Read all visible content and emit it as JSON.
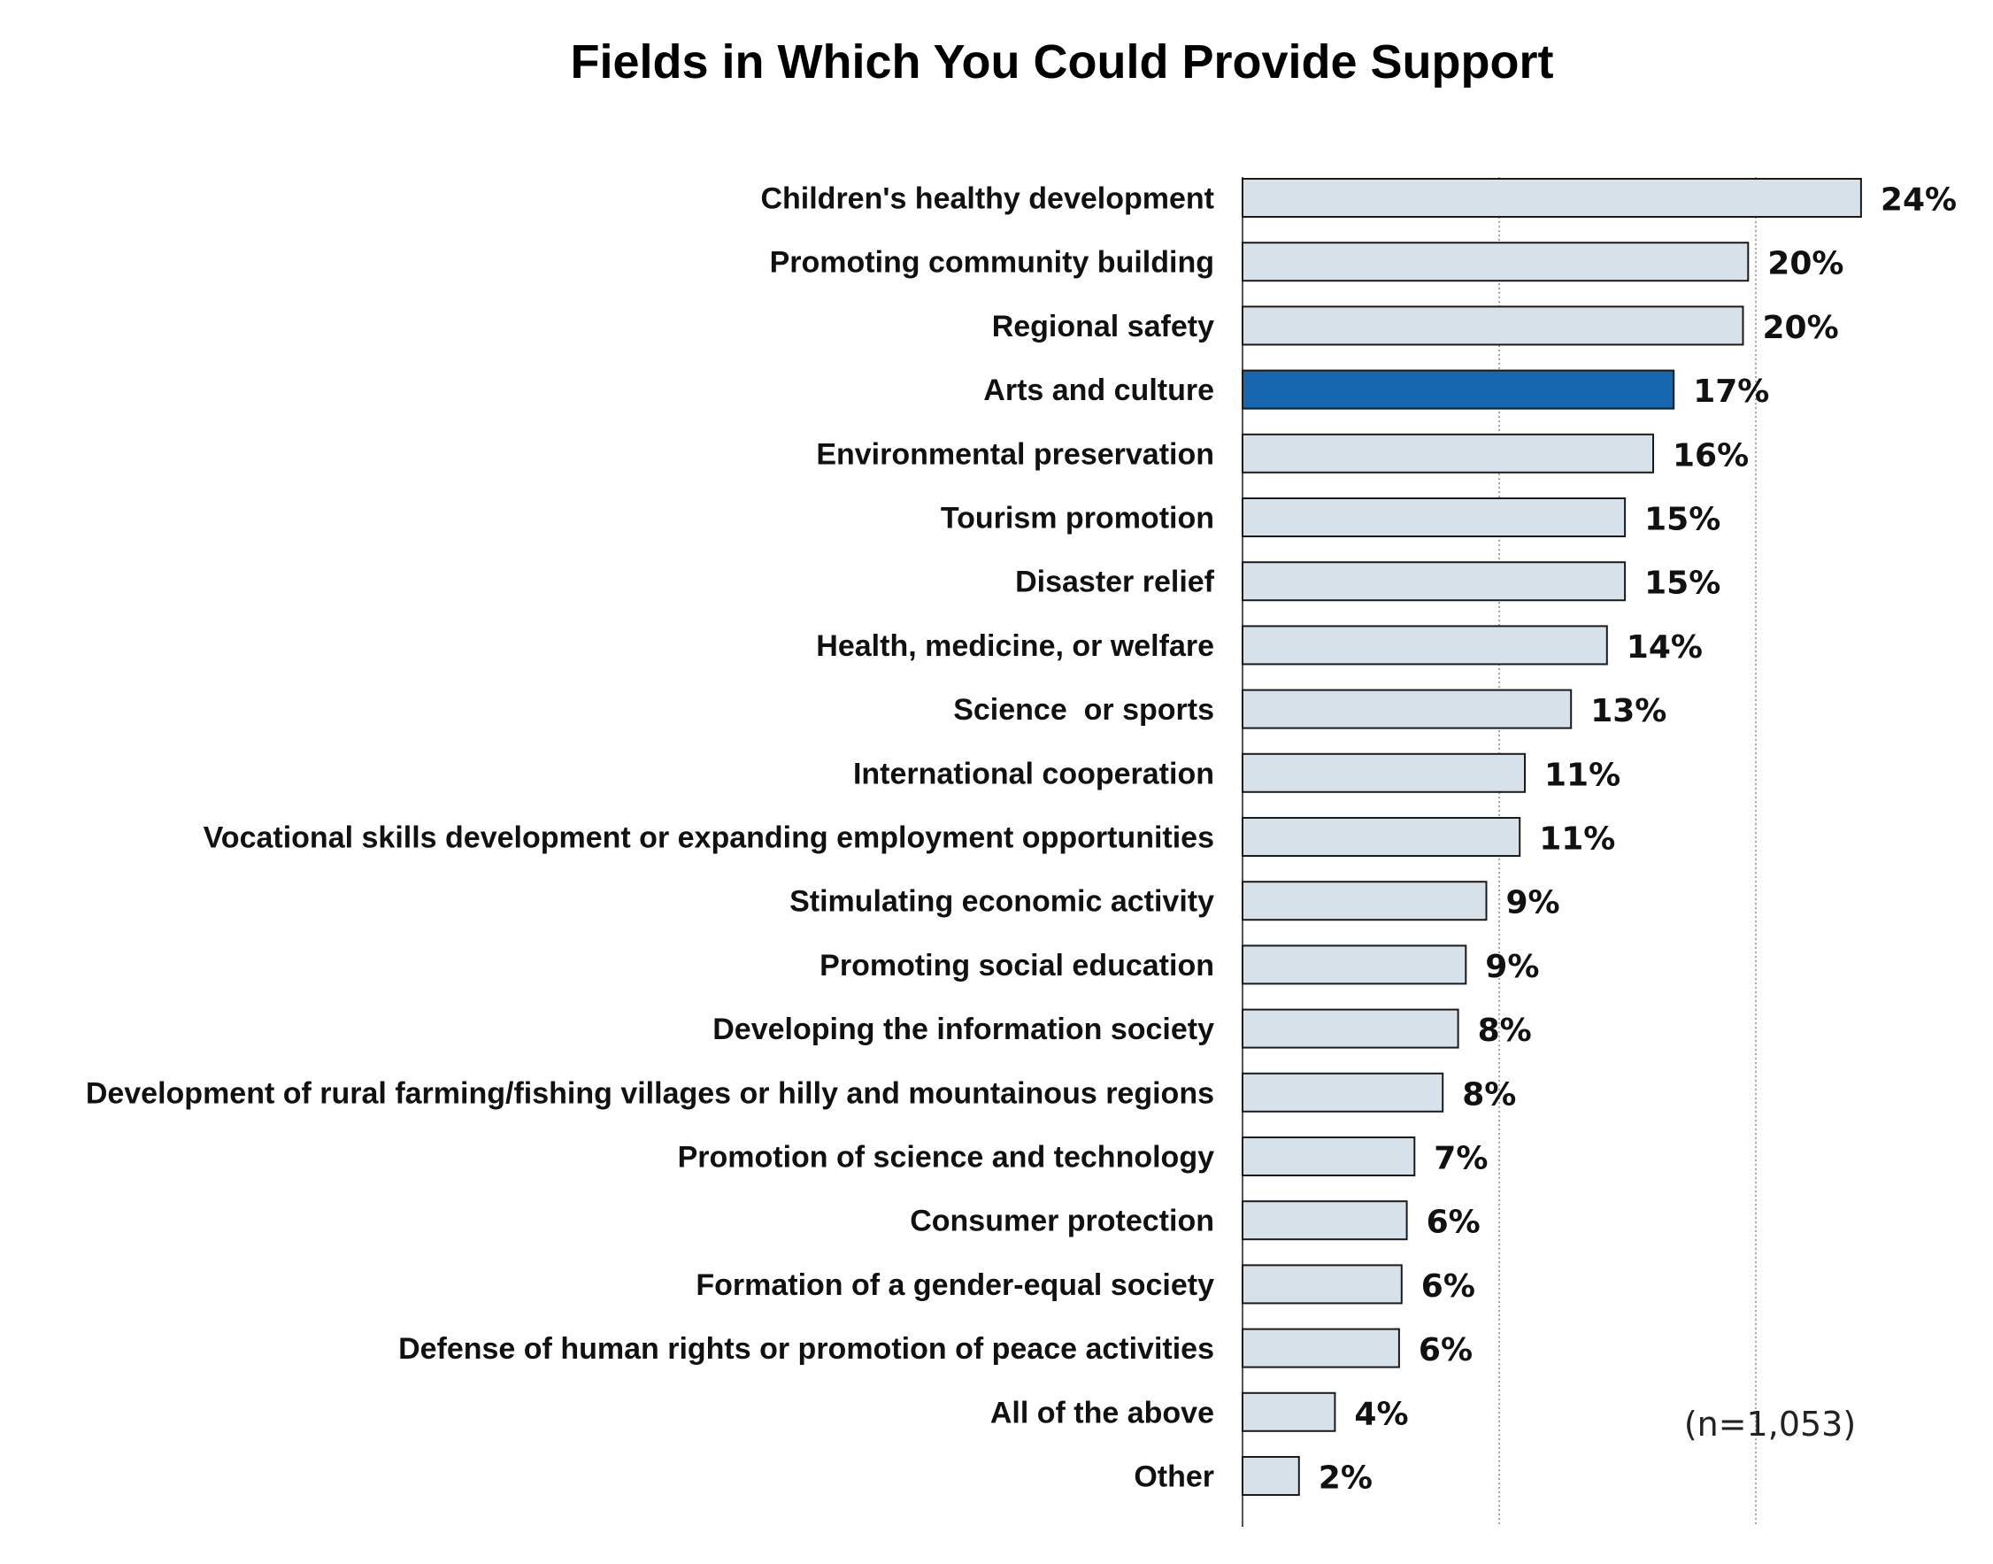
{
  "chart_data": {
    "type": "bar",
    "orientation": "horizontal",
    "title": "Fields in Which You Could Provide Support",
    "categories": [
      "Children's healthy development",
      "Promoting community building",
      "Regional safety",
      "Arts and culture",
      "Environmental preservation",
      "Tourism promotion",
      "Disaster relief",
      "Health, medicine, or welfare",
      "Science  or sports",
      "International cooperation",
      "Vocational skills development or expanding employment opportunities",
      "Stimulating economic activity",
      "Promoting social education",
      "Developing the information society",
      "Development of rural farming/fishing villages or hilly and mountainous regions",
      "Promotion of science and technology",
      "Consumer protection",
      "Formation of a gender-equal society",
      "Defense of human rights or promotion of peace activities",
      "All of the above",
      "Other"
    ],
    "values": [
      24.1,
      19.7,
      19.5,
      16.8,
      16.0,
      14.9,
      14.9,
      14.2,
      12.8,
      11.0,
      10.8,
      9.5,
      8.7,
      8.4,
      7.8,
      6.7,
      6.4,
      6.2,
      6.1,
      3.6,
      2.2
    ],
    "value_labels": [
      "24%",
      "20%",
      "20%",
      "17%",
      "16%",
      "15%",
      "15%",
      "14%",
      "13%",
      "11%",
      "11%",
      "9%",
      "9%",
      "8%",
      "8%",
      "7%",
      "6%",
      "6%",
      "6%",
      "4%",
      "2%"
    ],
    "highlight_index": 3,
    "xlim": [
      0,
      25
    ],
    "gridlines_at": [
      10,
      20
    ],
    "grid": true,
    "legend": false,
    "annotation": "(n=1,053)",
    "colors": {
      "bar_fill": "#d6e1ea",
      "bar_stroke": "#1a1a1a",
      "highlight_fill": "#1567b0",
      "grid": "#8a8a8a",
      "axis": "#555555"
    }
  }
}
